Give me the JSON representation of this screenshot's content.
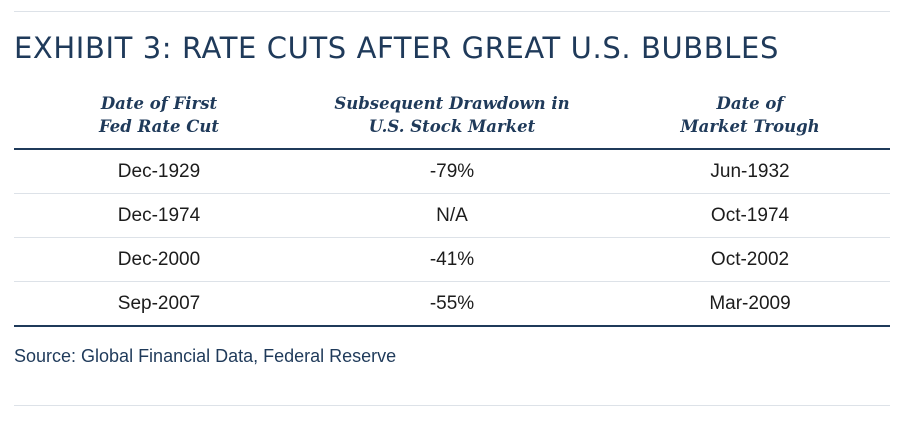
{
  "title": "EXHIBIT 3: RATE CUTS AFTER GREAT U.S. BUBBLES",
  "table": {
    "headers": [
      {
        "line1": "Date of First",
        "line2": "Fed Rate Cut"
      },
      {
        "line1": "Subsequent Drawdown in",
        "line2": "U.S. Stock Market"
      },
      {
        "line1": "Date of",
        "line2": "Market Trough"
      }
    ],
    "rows": [
      [
        "Dec-1929",
        "-79%",
        "Jun-1932"
      ],
      [
        "Dec-1974",
        "N/A",
        "Oct-1974"
      ],
      [
        "Dec-2000",
        "-41%",
        "Oct-2002"
      ],
      [
        "Sep-2007",
        "-55%",
        "Mar-2009"
      ]
    ]
  },
  "source": "Source: Global Financial Data, Federal Reserve",
  "colors": {
    "navy": "#1f3a5a",
    "rule": "#dde2e8",
    "text": "#1c1c1c"
  }
}
